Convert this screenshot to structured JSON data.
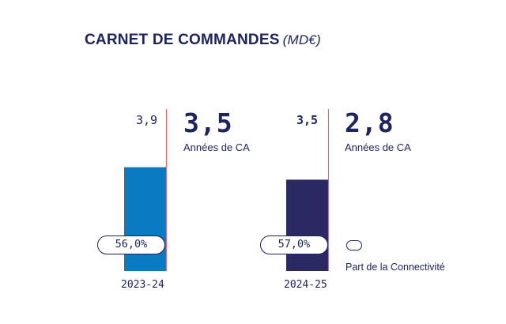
{
  "chart_data": {
    "type": "bar",
    "title": "CARNET DE COMMANDES",
    "unit": "(MD€)",
    "categories": [
      "2023-24",
      "2024-25"
    ],
    "series": [
      {
        "values": [
          2.5,
          2.2
        ],
        "colors": [
          "#0a7bc2",
          "#2a2963"
        ]
      }
    ],
    "reference_labels": [
      "3,9",
      "3,5"
    ],
    "headline_values": [
      "3,5",
      "2,8"
    ],
    "headline_sublabel": "Années de CA",
    "share_labels": [
      "56,0%",
      "57,0%"
    ],
    "legend": {
      "label": "Part de la Connectivité"
    },
    "reference_line_color": "#e36a6a",
    "ylim": [
      0,
      3.9
    ]
  }
}
